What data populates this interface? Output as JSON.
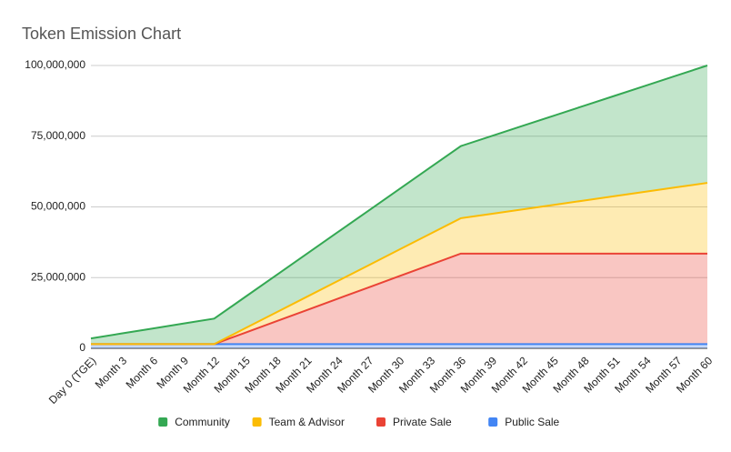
{
  "chart_data": {
    "type": "stacked-area",
    "title": "Token Emission Chart",
    "categories": [
      "Day 0 (TGE)",
      "Month 3",
      "Month 6",
      "Month 9",
      "Month 12",
      "Month 15",
      "Month 18",
      "Month 21",
      "Month 24",
      "Month 27",
      "Month 30",
      "Month 33",
      "Month 36",
      "Month 39",
      "Month 42",
      "Month 45",
      "Month 48",
      "Month 51",
      "Month 54",
      "Month 57",
      "Month 60"
    ],
    "series": [
      {
        "name": "Community",
        "color": "#34a853",
        "values": [
          2000000,
          3750000,
          5500000,
          7250000,
          9000000,
          11062500,
          13125000,
          15187500,
          17250000,
          19312500,
          21375000,
          23437500,
          25500000,
          27500000,
          29500000,
          31500000,
          33500000,
          35500000,
          37500000,
          39500000,
          41500000
        ]
      },
      {
        "name": "Team & Advisor",
        "color": "#fbbc04",
        "values": [
          0,
          0,
          0,
          0,
          0,
          1562500,
          3125000,
          4687500,
          6250000,
          7812500,
          9375000,
          10937500,
          12500000,
          14062500,
          15625000,
          17187500,
          18750000,
          20312500,
          21875000,
          23437500,
          25000000
        ]
      },
      {
        "name": "Private Sale",
        "color": "#ea4335",
        "values": [
          0,
          0,
          0,
          0,
          0,
          4000000,
          8000000,
          12000000,
          16000000,
          20000000,
          24000000,
          28000000,
          32000000,
          32000000,
          32000000,
          32000000,
          32000000,
          32000000,
          32000000,
          32000000,
          32000000
        ]
      },
      {
        "name": "Public Sale",
        "color": "#4285f4",
        "values": [
          1500000,
          1500000,
          1500000,
          1500000,
          1500000,
          1500000,
          1500000,
          1500000,
          1500000,
          1500000,
          1500000,
          1500000,
          1500000,
          1500000,
          1500000,
          1500000,
          1500000,
          1500000,
          1500000,
          1500000,
          1500000
        ]
      }
    ],
    "ylim": [
      0,
      100000000
    ],
    "yticks": [
      0,
      {
        "value": 25000000,
        "label": "25,000,000"
      },
      {
        "value": 50000000,
        "label": "50,000,000"
      },
      {
        "value": 75000000,
        "label": "75,000,000"
      },
      {
        "value": 100000000,
        "label": "100,000,000"
      }
    ],
    "grid": true,
    "legend": "bottom"
  }
}
